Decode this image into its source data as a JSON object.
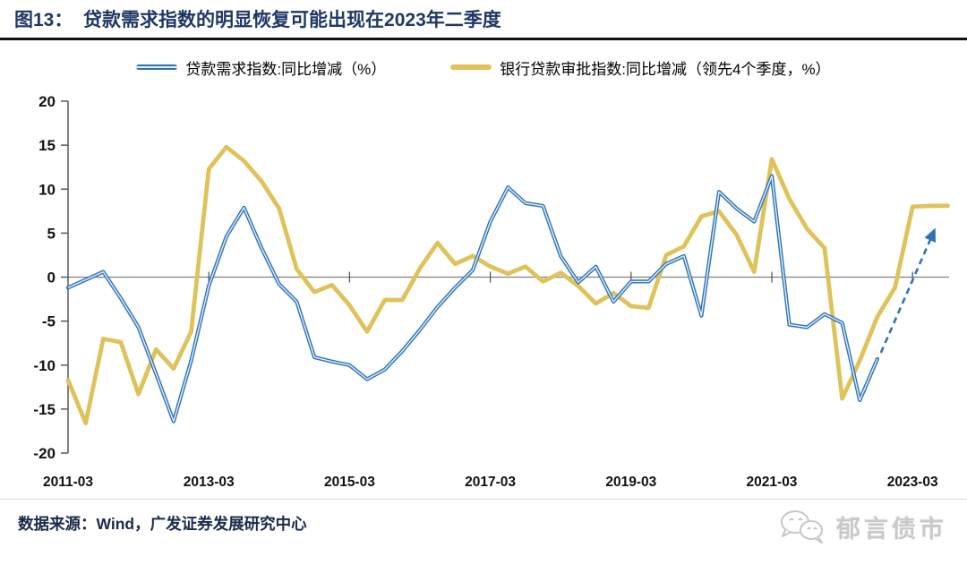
{
  "header": {
    "title": "图13：  贷款需求指数的明显恢复可能出现在2023年二季度"
  },
  "legend": [
    {
      "label": "贷款需求指数:同比增减（%）",
      "color": "#2E74B5"
    },
    {
      "label": "银行贷款审批指数:同比增减（领先4个季度，%）",
      "color": "#DFC35A"
    }
  ],
  "footer": {
    "source": "数据来源：Wind，广发证券发展研究中心",
    "watermark": "郁言债市"
  },
  "colors": {
    "title_navy": "#1F3864",
    "blue_line": "#2E74B5",
    "blue_line_center": "#E4EFF9",
    "yellow_line": "#DFC35A",
    "axis": "#595959",
    "zero_line": "#808080"
  },
  "chart_data": {
    "type": "line",
    "title": "贷款需求指数与银行贷款审批指数（同比增减，%）",
    "categories": [
      "2011-03",
      "2011-06",
      "2011-09",
      "2011-12",
      "2012-03",
      "2012-06",
      "2012-09",
      "2012-12",
      "2013-03",
      "2013-06",
      "2013-09",
      "2013-12",
      "2014-03",
      "2014-06",
      "2014-09",
      "2014-12",
      "2015-03",
      "2015-06",
      "2015-09",
      "2015-12",
      "2016-03",
      "2016-06",
      "2016-09",
      "2016-12",
      "2017-03",
      "2017-06",
      "2017-09",
      "2017-12",
      "2018-03",
      "2018-06",
      "2018-09",
      "2018-12",
      "2019-03",
      "2019-06",
      "2019-09",
      "2019-12",
      "2020-03",
      "2020-06",
      "2020-09",
      "2020-12",
      "2021-03",
      "2021-06",
      "2021-09",
      "2021-12",
      "2022-03",
      "2022-06",
      "2022-09",
      "2022-12",
      "2023-03",
      "2023-06",
      "2023-09"
    ],
    "series": [
      {
        "name": "贷款需求指数:同比增减（%）",
        "color": "#2E74B5",
        "style": "double",
        "values": [
          -1.2,
          -0.3,
          0.6,
          -2.4,
          -5.7,
          -11.0,
          -16.4,
          -9.5,
          -1.0,
          4.6,
          7.9,
          3.3,
          -0.8,
          -2.8,
          -9.1,
          -9.6,
          -10.0,
          -11.6,
          -10.5,
          -8.4,
          -6.0,
          -3.4,
          -1.2,
          0.8,
          6.3,
          10.2,
          8.4,
          8.1,
          2.4,
          -0.6,
          1.2,
          -2.8,
          -0.5,
          -0.5,
          1.5,
          2.4,
          -4.4,
          9.7,
          7.8,
          6.3,
          11.5,
          -5.4,
          -5.7,
          -4.2,
          -5.2,
          -14.0,
          -9.3,
          null,
          null,
          null,
          null
        ]
      },
      {
        "name": "银行贷款审批指数:同比增减（领先4个季度，%）",
        "color": "#DFC35A",
        "style": "solid",
        "values": [
          -11.7,
          -16.6,
          -7.0,
          -7.4,
          -13.3,
          -8.2,
          -10.4,
          -6.2,
          12.3,
          14.8,
          13.2,
          10.9,
          7.8,
          0.9,
          -1.7,
          -0.9,
          -3.2,
          -6.2,
          -2.6,
          -2.6,
          1.0,
          3.9,
          1.5,
          2.4,
          1.2,
          0.4,
          1.2,
          -0.5,
          0.5,
          -1.0,
          -3.0,
          -1.8,
          -3.3,
          -3.5,
          2.5,
          3.5,
          6.9,
          7.5,
          4.8,
          0.6,
          13.4,
          8.9,
          5.5,
          3.3,
          -13.8,
          -9.5,
          -4.5,
          -1.2,
          8.0,
          8.1,
          8.1
        ]
      }
    ],
    "ylim": [
      -20,
      20
    ],
    "yticks": [
      20,
      15,
      10,
      5,
      0,
      -5,
      -10,
      -15,
      -20
    ],
    "xtick_indices": [
      0,
      8,
      16,
      24,
      32,
      40,
      48
    ],
    "xtick_labels": [
      "2011-03",
      "2013-03",
      "2015-03",
      "2017-03",
      "2019-03",
      "2021-03",
      "2023-03"
    ],
    "grid": "zero-line-only",
    "legend_position": "top",
    "projection_arrow": {
      "style": "dashed",
      "color": "#2E74B5",
      "from": {
        "index": 46.2,
        "value": -8.6
      },
      "to": {
        "index": 49.3,
        "value": 5.6
      }
    }
  }
}
